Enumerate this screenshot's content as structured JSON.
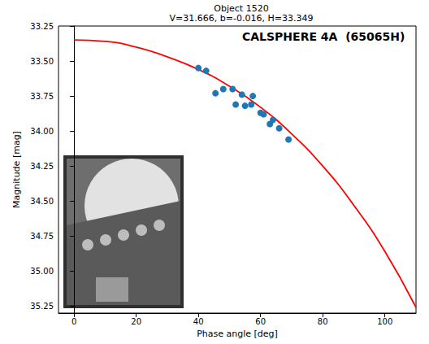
{
  "chart_data": {
    "type": "scatter",
    "title": "Object 1520",
    "subtitle": "V=31.666, b=-0.016, H=33.349",
    "annotation": "CALSPHERE 4A  (65065H)",
    "x_label": "Phase angle [deg]",
    "y_label": "Magnitude [mag]",
    "xlim": [
      -5,
      110
    ],
    "xticks": [
      0,
      20,
      40,
      60,
      80,
      100
    ],
    "ylim": [
      33.25,
      35.3
    ],
    "yticks": [
      {
        "value": 33.25,
        "label": "33.25"
      },
      {
        "value": 33.5,
        "label": "33.50"
      },
      {
        "value": 33.75,
        "label": "33.75"
      },
      {
        "value": 34,
        "label": "34.00"
      },
      {
        "value": 34.25,
        "label": "34.25"
      },
      {
        "value": 34.5,
        "label": "34.50"
      },
      {
        "value": 34.75,
        "label": "34.75"
      },
      {
        "value": 35,
        "label": "35.00"
      },
      {
        "value": 35.25,
        "label": "35.25"
      }
    ],
    "grid": false,
    "series": [
      {
        "type": "scatter",
        "color": "#1f77b4",
        "marker": "circle",
        "x": [
          40,
          42.5,
          45.5,
          48,
          51,
          52,
          54,
          55,
          57,
          57.5,
          60,
          61,
          63,
          64,
          66,
          69
        ],
        "values": [
          33.55,
          33.57,
          33.73,
          33.7,
          33.7,
          33.81,
          33.74,
          33.82,
          33.81,
          33.75,
          33.87,
          33.88,
          33.95,
          33.92,
          33.98,
          34.06
        ]
      },
      {
        "type": "line",
        "color": "#ff0000",
        "line_style": "solid",
        "x": [
          0,
          10,
          20,
          30,
          40,
          50,
          60,
          70,
          80,
          90,
          100,
          110
        ],
        "values": [
          33.35,
          33.36,
          33.4,
          33.47,
          33.56,
          33.68,
          33.83,
          34.02,
          34.25,
          34.53,
          34.86,
          35.26
        ]
      }
    ]
  }
}
